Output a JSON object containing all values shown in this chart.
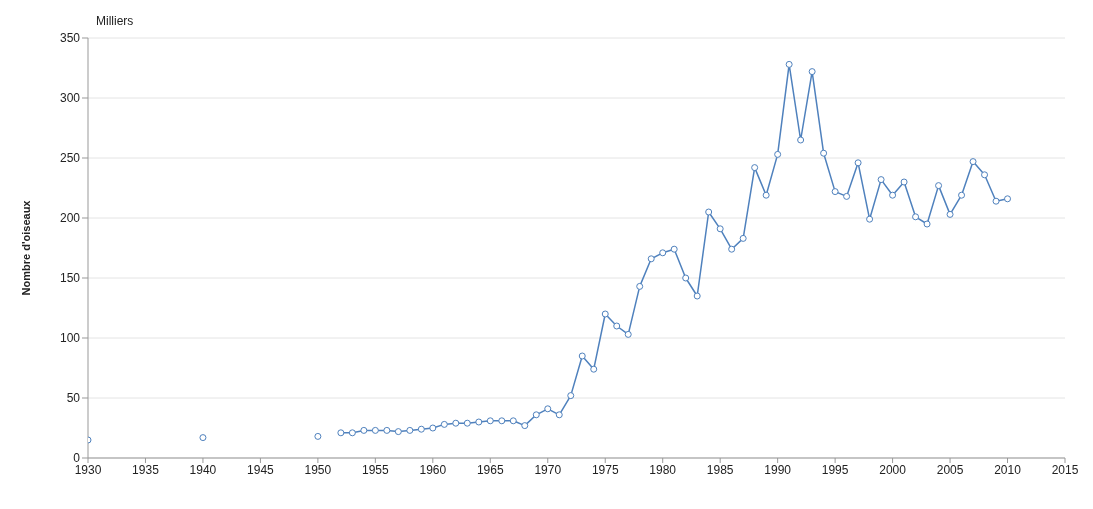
{
  "chart_data": {
    "type": "line",
    "ylabel": "Nombre d'oiseaux",
    "annotations": [
      "Milliers"
    ],
    "x": [
      1930,
      1931,
      1940,
      1941,
      1950,
      1951,
      1952,
      1953,
      1954,
      1955,
      1956,
      1957,
      1958,
      1959,
      1960,
      1961,
      1962,
      1963,
      1964,
      1965,
      1966,
      1967,
      1968,
      1969,
      1970,
      1971,
      1972,
      1973,
      1974,
      1975,
      1976,
      1977,
      1978,
      1979,
      1980,
      1981,
      1982,
      1983,
      1984,
      1985,
      1986,
      1987,
      1988,
      1989,
      1990,
      1991,
      1992,
      1993,
      1994,
      1995,
      1996,
      1997,
      1998,
      1999,
      2000,
      2001,
      2002,
      2003,
      2004,
      2005,
      2006,
      2007,
      2008,
      2009,
      2010
    ],
    "series": [
      {
        "color": "#4f81bd",
        "values": [
          15,
          null,
          17,
          null,
          18,
          null,
          21,
          21,
          23,
          23,
          23,
          22,
          23,
          24,
          25,
          28,
          29,
          29,
          30,
          31,
          31,
          31,
          27,
          36,
          41,
          36,
          52,
          85,
          74,
          120,
          110,
          103,
          143,
          166,
          171,
          174,
          150,
          135,
          205,
          191,
          174,
          183,
          242,
          219,
          253,
          328,
          265,
          322,
          254,
          222,
          218,
          246,
          199,
          232,
          219,
          230,
          201,
          195,
          227,
          203,
          219,
          247,
          236,
          214,
          216
        ]
      }
    ],
    "xlim": [
      1930,
      2015
    ],
    "xticks": [
      1930,
      1935,
      1940,
      1945,
      1950,
      1955,
      1960,
      1965,
      1970,
      1975,
      1980,
      1985,
      1990,
      1995,
      2000,
      2005,
      2010,
      2015
    ],
    "ylim": [
      0,
      350
    ],
    "yticks": [
      0,
      50,
      100,
      150,
      200,
      250,
      300,
      350
    ],
    "grid": "y",
    "marker": "circle",
    "line_style": "solid"
  }
}
